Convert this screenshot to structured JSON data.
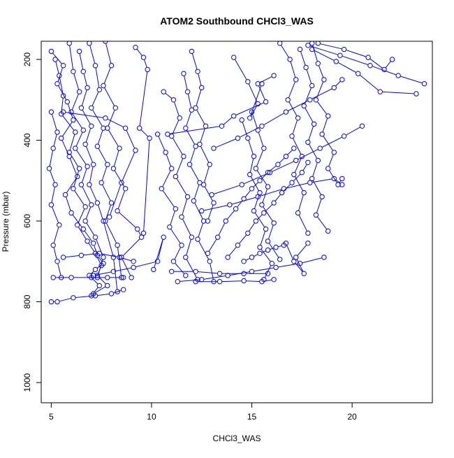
{
  "chart_data": {
    "type": "line",
    "title": "ATOM2 Southbound CHCl3_WAS",
    "xlabel": "CHCl3_WAS",
    "ylabel": "Pressure (mbar)",
    "xlim": [
      4.5,
      24.0
    ],
    "ylim": [
      1050,
      155
    ],
    "y_reversed": true,
    "x_ticks": [
      5,
      10,
      15,
      20
    ],
    "y_ticks": [
      200,
      400,
      600,
      800,
      1000
    ],
    "grid": false,
    "legend": "none",
    "marker": "open-circle",
    "color": "#0000ff",
    "series": [
      {
        "x": [
          5.0,
          5.6,
          5.3,
          5.8,
          6.1,
          5.5,
          5.9,
          6.3,
          5.7,
          6.0,
          6.6,
          7.1,
          7.3,
          7.6,
          7.2,
          6.9,
          7.4,
          7.0
        ],
        "y": [
          180,
          215,
          260,
          305,
          350,
          395,
          440,
          490,
          535,
          580,
          620,
          655,
          685,
          705,
          720,
          735,
          760,
          785
        ]
      },
      {
        "x": [
          5.2,
          5.4,
          5.6,
          5.5,
          6.2,
          5.9,
          6.4,
          6.1,
          6.7,
          6.3,
          6.8,
          7.2,
          7.5,
          7.3,
          7.8,
          7.1
        ],
        "y": [
          200,
          240,
          290,
          335,
          380,
          430,
          470,
          520,
          565,
          610,
          650,
          680,
          710,
          735,
          760,
          780
        ]
      },
      {
        "x": [
          5.9,
          6.1,
          6.4,
          6.0,
          6.6,
          6.2,
          6.8,
          6.5,
          7.0,
          6.7,
          7.2,
          7.6,
          7.3
        ],
        "y": [
          160,
          230,
          280,
          330,
          375,
          420,
          465,
          510,
          560,
          600,
          640,
          690,
          740
        ]
      },
      {
        "x": [
          6.9,
          7.2,
          7.4,
          7.0,
          7.6,
          7.3,
          7.8,
          7.5,
          8.0,
          7.7,
          8.3,
          8.5
        ],
        "y": [
          160,
          215,
          275,
          320,
          370,
          415,
          460,
          505,
          555,
          600,
          660,
          740
        ]
      },
      {
        "x": [
          7.7,
          8.0,
          7.6,
          8.2,
          7.8,
          8.4,
          8.1,
          8.7,
          8.3,
          9.3,
          9.5,
          8.5,
          9.0
        ],
        "y": [
          155,
          215,
          265,
          320,
          370,
          420,
          470,
          520,
          575,
          620,
          640,
          690,
          740
        ]
      },
      {
        "x": [
          5.0,
          5.3,
          5.1,
          4.9,
          5.2,
          5.0,
          5.4,
          5.1,
          5.3,
          5.5
        ],
        "y": [
          330,
          380,
          420,
          470,
          510,
          560,
          610,
          660,
          700,
          740
        ]
      },
      {
        "x": [
          6.4,
          6.6,
          6.8,
          6.5,
          7.0,
          6.7,
          7.1,
          6.9,
          7.3,
          7.6,
          8.1,
          8.3
        ],
        "y": [
          180,
          230,
          270,
          320,
          365,
          410,
          460,
          510,
          555,
          600,
          690,
          775
        ]
      },
      {
        "x": [
          9.2,
          9.6,
          9.8,
          9.4,
          9.9,
          9.6
        ],
        "y": [
          170,
          195,
          225,
          370,
          395,
          630
        ]
      },
      {
        "x": [
          5.6,
          7.7,
          8.7,
          9.2,
          8.5,
          7.9
        ],
        "y": [
          330,
          345,
          370,
          425,
          505,
          590
        ]
      },
      {
        "x": [
          5.0,
          5.3,
          6.1,
          7.2,
          8.0,
          8.6
        ],
        "y": [
          800,
          800,
          790,
          785,
          780,
          770
        ]
      },
      {
        "x": [
          5.1,
          6.0,
          7.0,
          7.8,
          8.6
        ],
        "y": [
          740,
          740,
          740,
          740,
          740
        ]
      },
      {
        "x": [
          5.6,
          6.5,
          7.4,
          8.4,
          9.1
        ],
        "y": [
          690,
          685,
          680,
          690,
          700
        ]
      },
      {
        "x": [
          7.1,
          8.1,
          9.1,
          10.3,
          10.6,
          10.1
        ],
        "y": [
          735,
          725,
          715,
          700,
          640,
          720
        ]
      },
      {
        "x": [
          10.6,
          11.1,
          11.4,
          11.0,
          11.6,
          11.2,
          11.8,
          11.5,
          12.0,
          11.7,
          12.3
        ],
        "y": [
          280,
          300,
          345,
          390,
          440,
          490,
          540,
          590,
          640,
          690,
          745
        ]
      },
      {
        "x": [
          11.6,
          11.8,
          12.0,
          11.7,
          12.2,
          11.9,
          12.4,
          12.1,
          12.6,
          12.3,
          12.9,
          13.1
        ],
        "y": [
          235,
          280,
          325,
          370,
          415,
          460,
          505,
          550,
          600,
          645,
          700,
          750
        ]
      },
      {
        "x": [
          12.0,
          12.3,
          12.5,
          12.2,
          12.7,
          12.4,
          12.9,
          12.6,
          13.1,
          12.8
        ],
        "y": [
          180,
          230,
          270,
          320,
          365,
          410,
          460,
          510,
          555,
          600
        ]
      },
      {
        "x": [
          10.3,
          10.7,
          11.0,
          10.5,
          11.2,
          10.9,
          11.5,
          11.1,
          11.7
        ],
        "y": [
          385,
          430,
          470,
          520,
          570,
          615,
          660,
          700,
          735
        ]
      },
      {
        "x": [
          10.8,
          13.5,
          14.1,
          15.7,
          15.3,
          16.1
        ],
        "y": [
          385,
          365,
          340,
          305,
          260,
          240
        ]
      },
      {
        "x": [
          13.1,
          14.3,
          15.5,
          16.7,
          17.9,
          19.1,
          19.5
        ],
        "y": [
          420,
          395,
          365,
          330,
          300,
          270,
          250
        ]
      },
      {
        "x": [
          13.0,
          14.5,
          15.9,
          17.2,
          18.4,
          19.6,
          20.5
        ],
        "y": [
          535,
          510,
          480,
          450,
          420,
          390,
          365
        ]
      },
      {
        "x": [
          12.5,
          13.9,
          15.3,
          16.6,
          17.9,
          19.1,
          19.5
        ],
        "y": [
          575,
          560,
          540,
          520,
          505,
          495,
          510
        ]
      },
      {
        "x": [
          11.3,
          12.5,
          13.8,
          15.0,
          16.2,
          17.4,
          18.6
        ],
        "y": [
          750,
          745,
          735,
          725,
          715,
          705,
          690
        ]
      },
      {
        "x": [
          11.0,
          12.2,
          13.4,
          14.6,
          15.8
        ],
        "y": [
          725,
          725,
          730,
          730,
          730
        ]
      },
      {
        "x": [
          12.2,
          13.4,
          14.6,
          15.5,
          16.1
        ],
        "y": [
          750,
          750,
          748,
          750,
          745
        ]
      },
      {
        "x": [
          12.8,
          13.3,
          13.7,
          14.2,
          14.6,
          15.0,
          15.4,
          15.8,
          16.3,
          16.7,
          17.1
        ],
        "y": [
          680,
          640,
          600,
          570,
          545,
          520,
          500,
          480,
          460,
          440,
          420
        ]
      },
      {
        "x": [
          13.8,
          14.3,
          14.8,
          15.2,
          15.6,
          16.1,
          16.5,
          17.0,
          17.5,
          17.8
        ],
        "y": [
          690,
          660,
          630,
          600,
          580,
          555,
          530,
          505,
          480,
          455
        ]
      },
      {
        "x": [
          14.5,
          14.8,
          15.1,
          14.9,
          15.4,
          15.1,
          15.7,
          15.4,
          16.0,
          15.6
        ],
        "y": [
          350,
          395,
          440,
          485,
          530,
          575,
          620,
          665,
          705,
          745
        ]
      },
      {
        "x": [
          15.0,
          15.3,
          15.6,
          15.2,
          15.8,
          15.5,
          16.1,
          15.8,
          16.4
        ],
        "y": [
          330,
          375,
          420,
          470,
          515,
          560,
          605,
          650,
          695
        ]
      },
      {
        "x": [
          16.4,
          16.9,
          17.2,
          16.8,
          17.3,
          17.0,
          17.5,
          17.1,
          17.6,
          17.3,
          17.8
        ],
        "y": [
          160,
          200,
          250,
          300,
          345,
          390,
          440,
          485,
          530,
          580,
          630
        ]
      },
      {
        "x": [
          17.4,
          17.7,
          18.0,
          17.6,
          18.1,
          17.8,
          18.3,
          18.0,
          18.5,
          18.2,
          18.8
        ],
        "y": [
          175,
          220,
          265,
          315,
          360,
          405,
          450,
          495,
          540,
          585,
          625
        ]
      },
      {
        "x": [
          18.0,
          18.3,
          18.6,
          18.2,
          18.8,
          18.5,
          19.1,
          18.8,
          19.3,
          19.5
        ],
        "y": [
          160,
          210,
          250,
          300,
          340,
          385,
          430,
          470,
          510,
          495
        ]
      },
      {
        "x": [
          17.8,
          19.4,
          20.9,
          22.3,
          23.6
        ],
        "y": [
          165,
          190,
          215,
          240,
          260
        ]
      },
      {
        "x": [
          18.3,
          19.6,
          20.8,
          21.6,
          22.0
        ],
        "y": [
          160,
          175,
          195,
          225,
          200
        ]
      },
      {
        "x": [
          18.0,
          19.2,
          20.3,
          21.4,
          23.2
        ],
        "y": [
          175,
          205,
          235,
          280,
          285
        ]
      },
      {
        "x": [
          14.1,
          14.8,
          15.3,
          14.9,
          15.5
        ],
        "y": [
          195,
          255,
          310,
          345,
          260
        ]
      },
      {
        "x": [
          16.7,
          17.1,
          17.6,
          17.2,
          17.8
        ],
        "y": [
          655,
          700,
          730,
          690,
          655
        ]
      },
      {
        "x": [
          14.6,
          15.0,
          15.4,
          15.8,
          16.2,
          16.6
        ],
        "y": [
          700,
          690,
          680,
          672,
          665,
          660
        ]
      }
    ]
  }
}
